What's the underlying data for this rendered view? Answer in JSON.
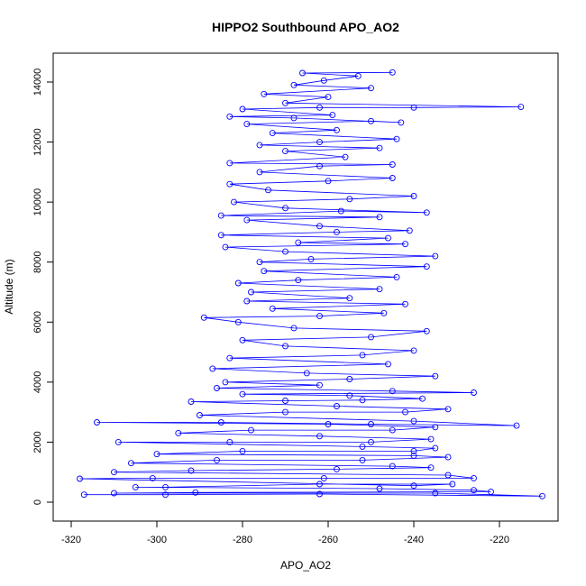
{
  "chart_data": {
    "type": "scatter",
    "title": "HIPPO2 Southbound APO_AO2",
    "xlabel": "APO_AO2",
    "ylabel": "Altitude (m)",
    "xlim": [
      -320,
      -210
    ],
    "ylim": [
      0,
      14500
    ],
    "x_ticks": [
      -320,
      -300,
      -280,
      -260,
      -240,
      -220
    ],
    "x_tick_labels": [
      "-320",
      "-300",
      "-280",
      "-260",
      "-240",
      "-220"
    ],
    "y_ticks": [
      0,
      2000,
      4000,
      6000,
      8000,
      10000,
      12000,
      14000
    ],
    "y_tick_labels": [
      "0",
      "2000",
      "4000",
      "6000",
      "8000",
      "10000",
      "12000",
      "14000"
    ],
    "grid": false,
    "legend": "none",
    "marker": "open-circle",
    "connected": true,
    "series": [
      {
        "color": "#0000ff",
        "points": [
          [
            -317,
            250
          ],
          [
            -298,
            250
          ],
          [
            -262,
            270
          ],
          [
            -210,
            200
          ],
          [
            -235,
            300
          ],
          [
            -310,
            300
          ],
          [
            -291,
            320
          ],
          [
            -222,
            350
          ],
          [
            -226,
            400
          ],
          [
            -248,
            450
          ],
          [
            -305,
            500
          ],
          [
            -298,
            500
          ],
          [
            -262,
            600
          ],
          [
            -231,
            600
          ],
          [
            -240,
            550
          ],
          [
            -318,
            780
          ],
          [
            -301,
            800
          ],
          [
            -261,
            800
          ],
          [
            -226,
            800
          ],
          [
            -232,
            900
          ],
          [
            -310,
            1000
          ],
          [
            -292,
            1050
          ],
          [
            -258,
            1100
          ],
          [
            -236,
            1150
          ],
          [
            -245,
            1200
          ],
          [
            -306,
            1300
          ],
          [
            -286,
            1400
          ],
          [
            -252,
            1400
          ],
          [
            -232,
            1500
          ],
          [
            -240,
            1550
          ],
          [
            -300,
            1600
          ],
          [
            -280,
            1700
          ],
          [
            -240,
            1700
          ],
          [
            -235,
            1800
          ],
          [
            -252,
            1850
          ],
          [
            -309,
            2000
          ],
          [
            -283,
            2000
          ],
          [
            -250,
            2000
          ],
          [
            -236,
            2100
          ],
          [
            -262,
            2200
          ],
          [
            -295,
            2300
          ],
          [
            -278,
            2400
          ],
          [
            -245,
            2400
          ],
          [
            -235,
            2500
          ],
          [
            -260,
            2600
          ],
          [
            -314,
            2660
          ],
          [
            -285,
            2660
          ],
          [
            -250,
            2600
          ],
          [
            -216,
            2550
          ],
          [
            -240,
            2700
          ],
          [
            -290,
            2900
          ],
          [
            -270,
            3000
          ],
          [
            -242,
            3000
          ],
          [
            -232,
            3100
          ],
          [
            -258,
            3200
          ],
          [
            -292,
            3350
          ],
          [
            -270,
            3380
          ],
          [
            -252,
            3400
          ],
          [
            -238,
            3450
          ],
          [
            -255,
            3550
          ],
          [
            -280,
            3600
          ],
          [
            -226,
            3650
          ],
          [
            -245,
            3700
          ],
          [
            -286,
            3800
          ],
          [
            -262,
            3900
          ],
          [
            -284,
            4000
          ],
          [
            -255,
            4100
          ],
          [
            -235,
            4200
          ],
          [
            -265,
            4300
          ],
          [
            -287,
            4450
          ],
          [
            -246,
            4600
          ],
          [
            -283,
            4800
          ],
          [
            -252,
            4900
          ],
          [
            -240,
            5050
          ],
          [
            -270,
            5200
          ],
          [
            -280,
            5400
          ],
          [
            -250,
            5500
          ],
          [
            -237,
            5700
          ],
          [
            -268,
            5800
          ],
          [
            -281,
            6000
          ],
          [
            -289,
            6150
          ],
          [
            -262,
            6200
          ],
          [
            -247,
            6300
          ],
          [
            -273,
            6450
          ],
          [
            -242,
            6600
          ],
          [
            -279,
            6700
          ],
          [
            -255,
            6800
          ],
          [
            -278,
            7000
          ],
          [
            -248,
            7100
          ],
          [
            -281,
            7300
          ],
          [
            -267,
            7400
          ],
          [
            -244,
            7500
          ],
          [
            -275,
            7700
          ],
          [
            -237,
            7850
          ],
          [
            -276,
            8000
          ],
          [
            -264,
            8100
          ],
          [
            -235,
            8200
          ],
          [
            -270,
            8350
          ],
          [
            -284,
            8500
          ],
          [
            -242,
            8600
          ],
          [
            -267,
            8650
          ],
          [
            -246,
            8800
          ],
          [
            -285,
            8900
          ],
          [
            -258,
            9000
          ],
          [
            -241,
            9050
          ],
          [
            -262,
            9200
          ],
          [
            -279,
            9400
          ],
          [
            -248,
            9500
          ],
          [
            -285,
            9550
          ],
          [
            -257,
            9700
          ],
          [
            -237,
            9650
          ],
          [
            -270,
            9800
          ],
          [
            -282,
            10000
          ],
          [
            -255,
            10100
          ],
          [
            -240,
            10200
          ],
          [
            -274,
            10400
          ],
          [
            -283,
            10600
          ],
          [
            -260,
            10700
          ],
          [
            -245,
            10800
          ],
          [
            -276,
            11000
          ],
          [
            -262,
            11200
          ],
          [
            -245,
            11250
          ],
          [
            -283,
            11300
          ],
          [
            -256,
            11500
          ],
          [
            -270,
            11700
          ],
          [
            -248,
            11800
          ],
          [
            -276,
            11900
          ],
          [
            -262,
            12000
          ],
          [
            -244,
            12100
          ],
          [
            -273,
            12300
          ],
          [
            -258,
            12400
          ],
          [
            -279,
            12600
          ],
          [
            -250,
            12700
          ],
          [
            -243,
            12650
          ],
          [
            -268,
            12800
          ],
          [
            -283,
            12850
          ],
          [
            -259,
            12900
          ],
          [
            -280,
            13100
          ],
          [
            -262,
            13150
          ],
          [
            -240,
            13150
          ],
          [
            -215,
            13170
          ],
          [
            -270,
            13300
          ],
          [
            -260,
            13500
          ],
          [
            -275,
            13600
          ],
          [
            -250,
            13800
          ],
          [
            -268,
            13900
          ],
          [
            -261,
            14050
          ],
          [
            -253,
            14200
          ],
          [
            -266,
            14300
          ],
          [
            -245,
            14320
          ]
        ]
      }
    ]
  }
}
